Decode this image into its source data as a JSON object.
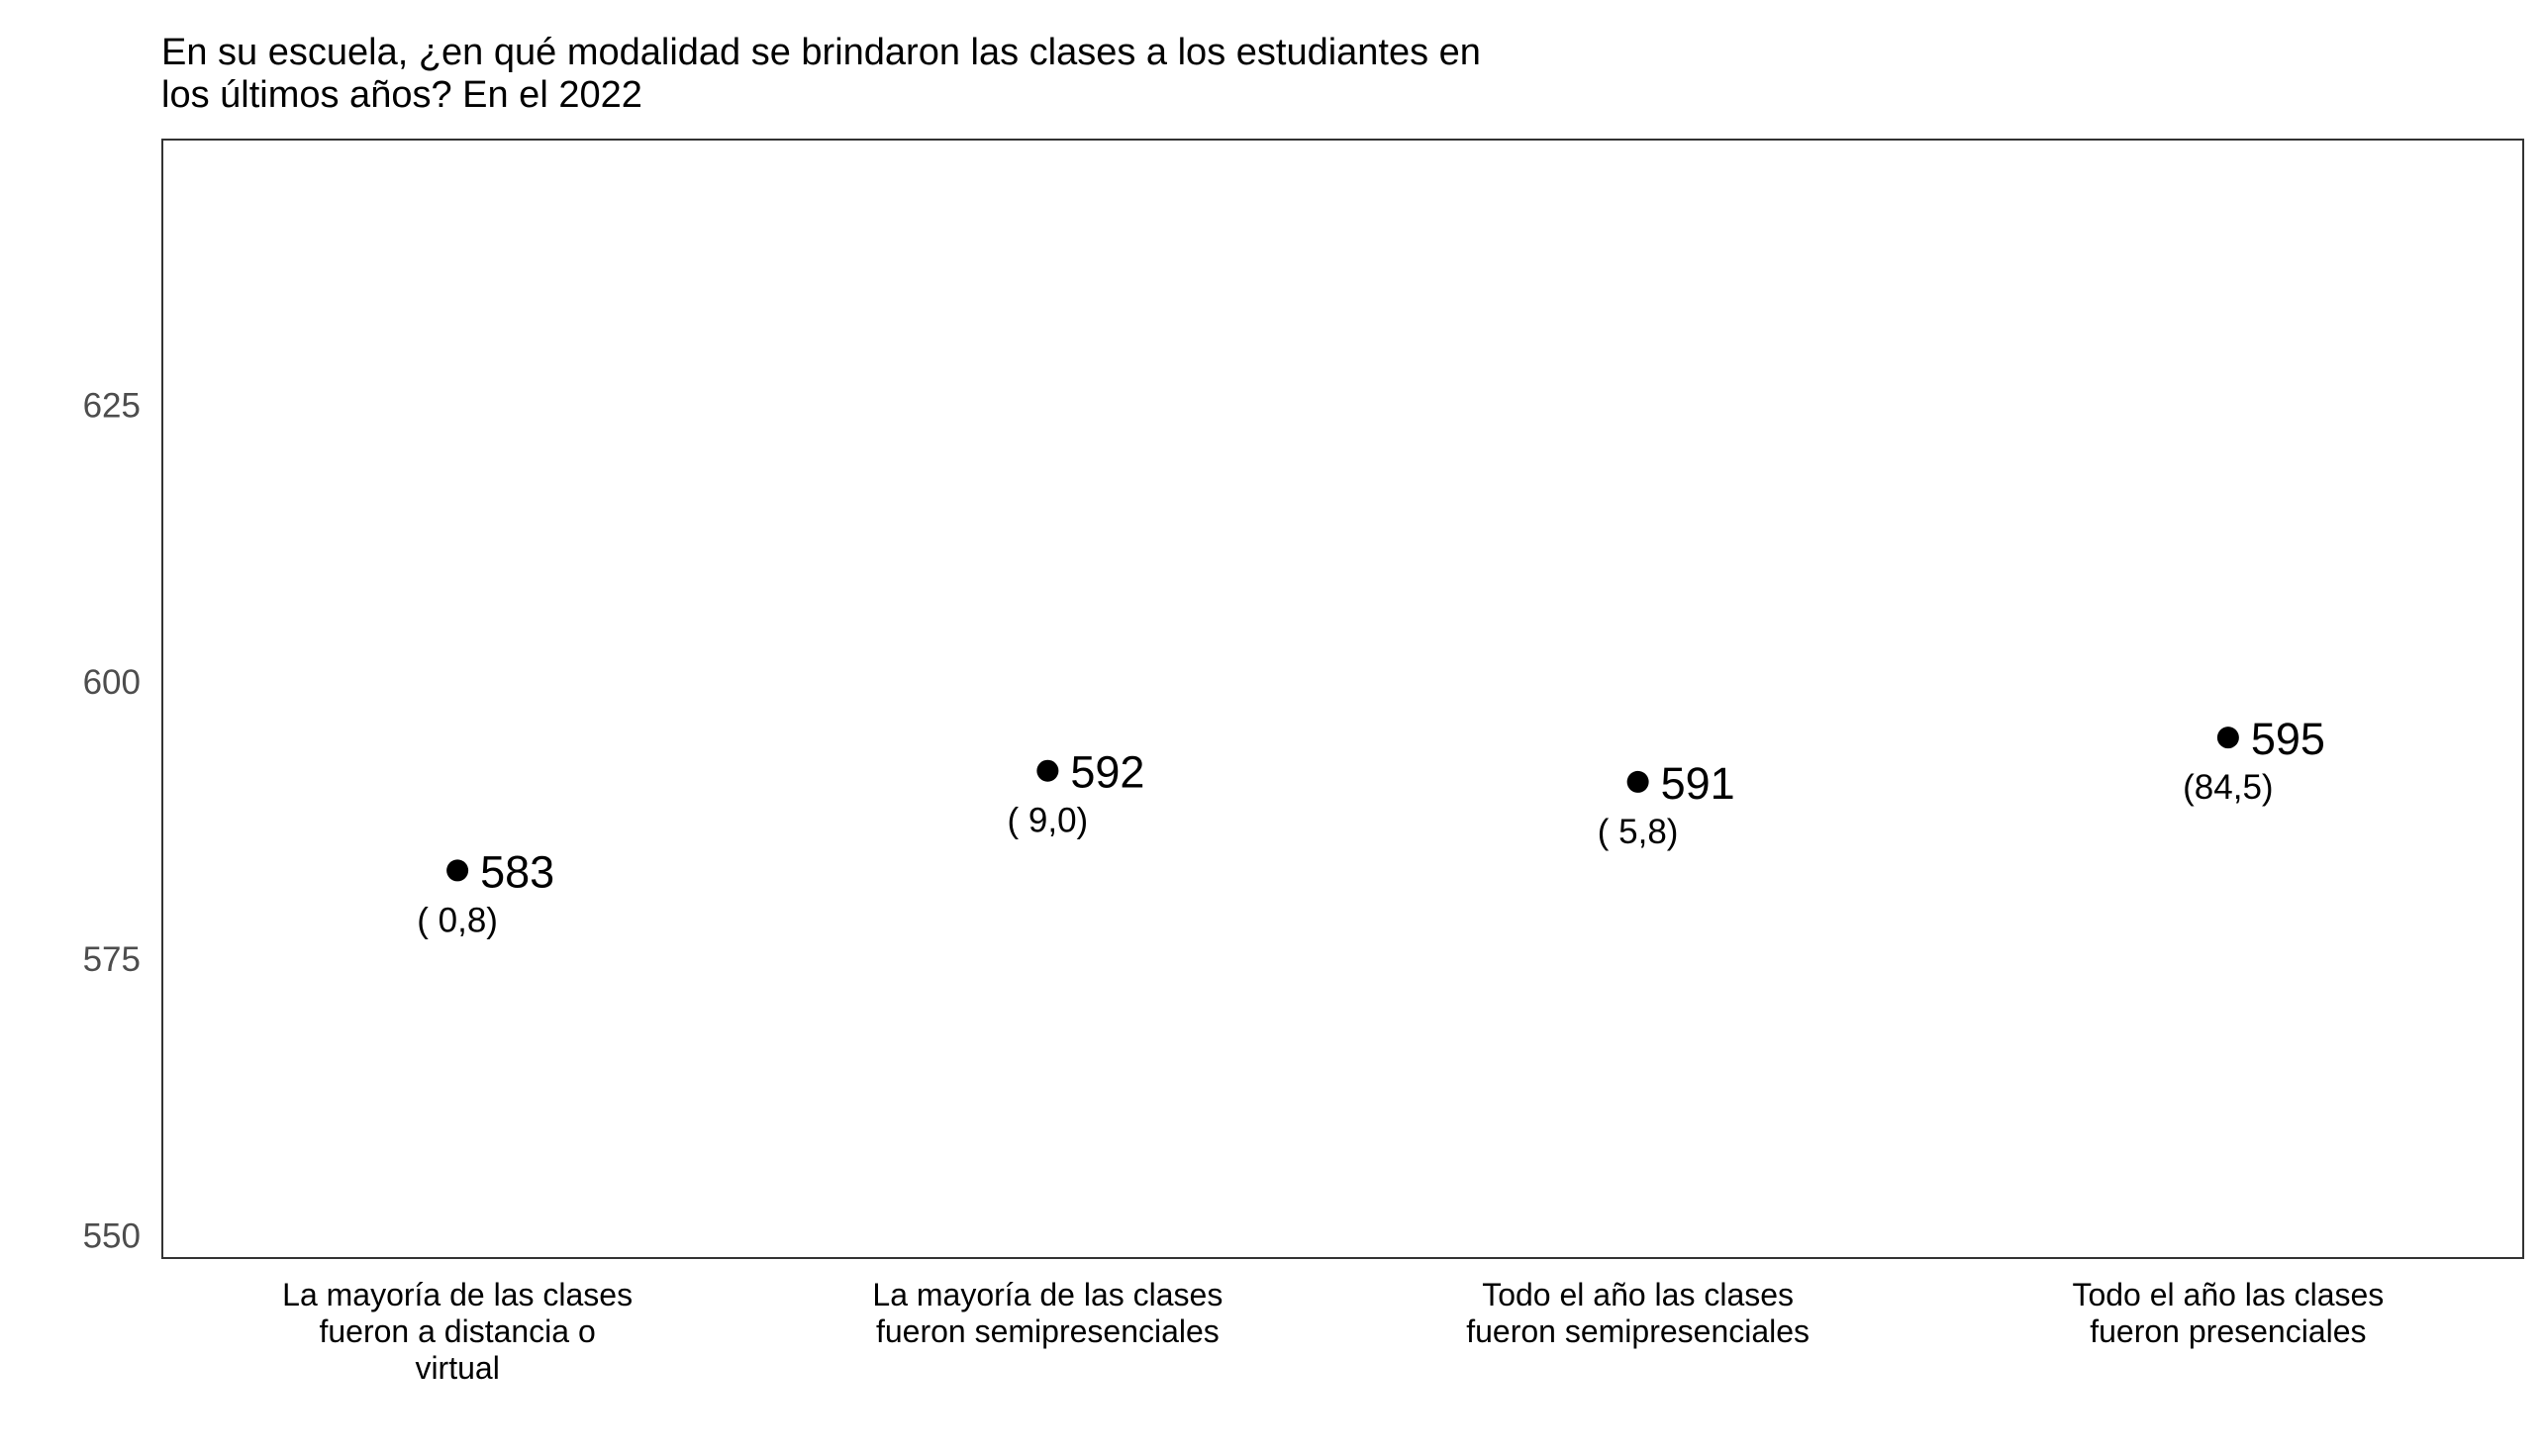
{
  "chart_data": {
    "type": "scatter",
    "title_lines": [
      "En su escuela, ¿en qué modalidad se brindaron las clases a los estudiantes en",
      "los últimos años? En el 2022"
    ],
    "xlabel": "",
    "ylabel": "",
    "ylim": [
      548,
      649
    ],
    "yticks": [
      550,
      575,
      600,
      625
    ],
    "y_tick_labels": [
      "550",
      "575",
      "600",
      "625"
    ],
    "grid": false,
    "legend": "none",
    "colors": {
      "point": "#000000",
      "axis_text": "#4d4d4d",
      "panel_border": "#333333"
    },
    "categories": [
      [
        "La mayoría de las clases",
        "fueron a distancia o",
        "virtual"
      ],
      [
        "La mayoría de las clases",
        "fueron semipresenciales"
      ],
      [
        "Todo el año las clases",
        "fueron semipresenciales"
      ],
      [
        "Todo el año las clases",
        "fueron presenciales"
      ]
    ],
    "values": [
      583,
      592,
      591,
      595
    ],
    "value_labels": [
      "583",
      "592",
      "591",
      "595"
    ],
    "percent_labels": [
      "( 0,8)",
      "( 9,0)",
      "( 5,8)",
      "(84,5)"
    ]
  }
}
